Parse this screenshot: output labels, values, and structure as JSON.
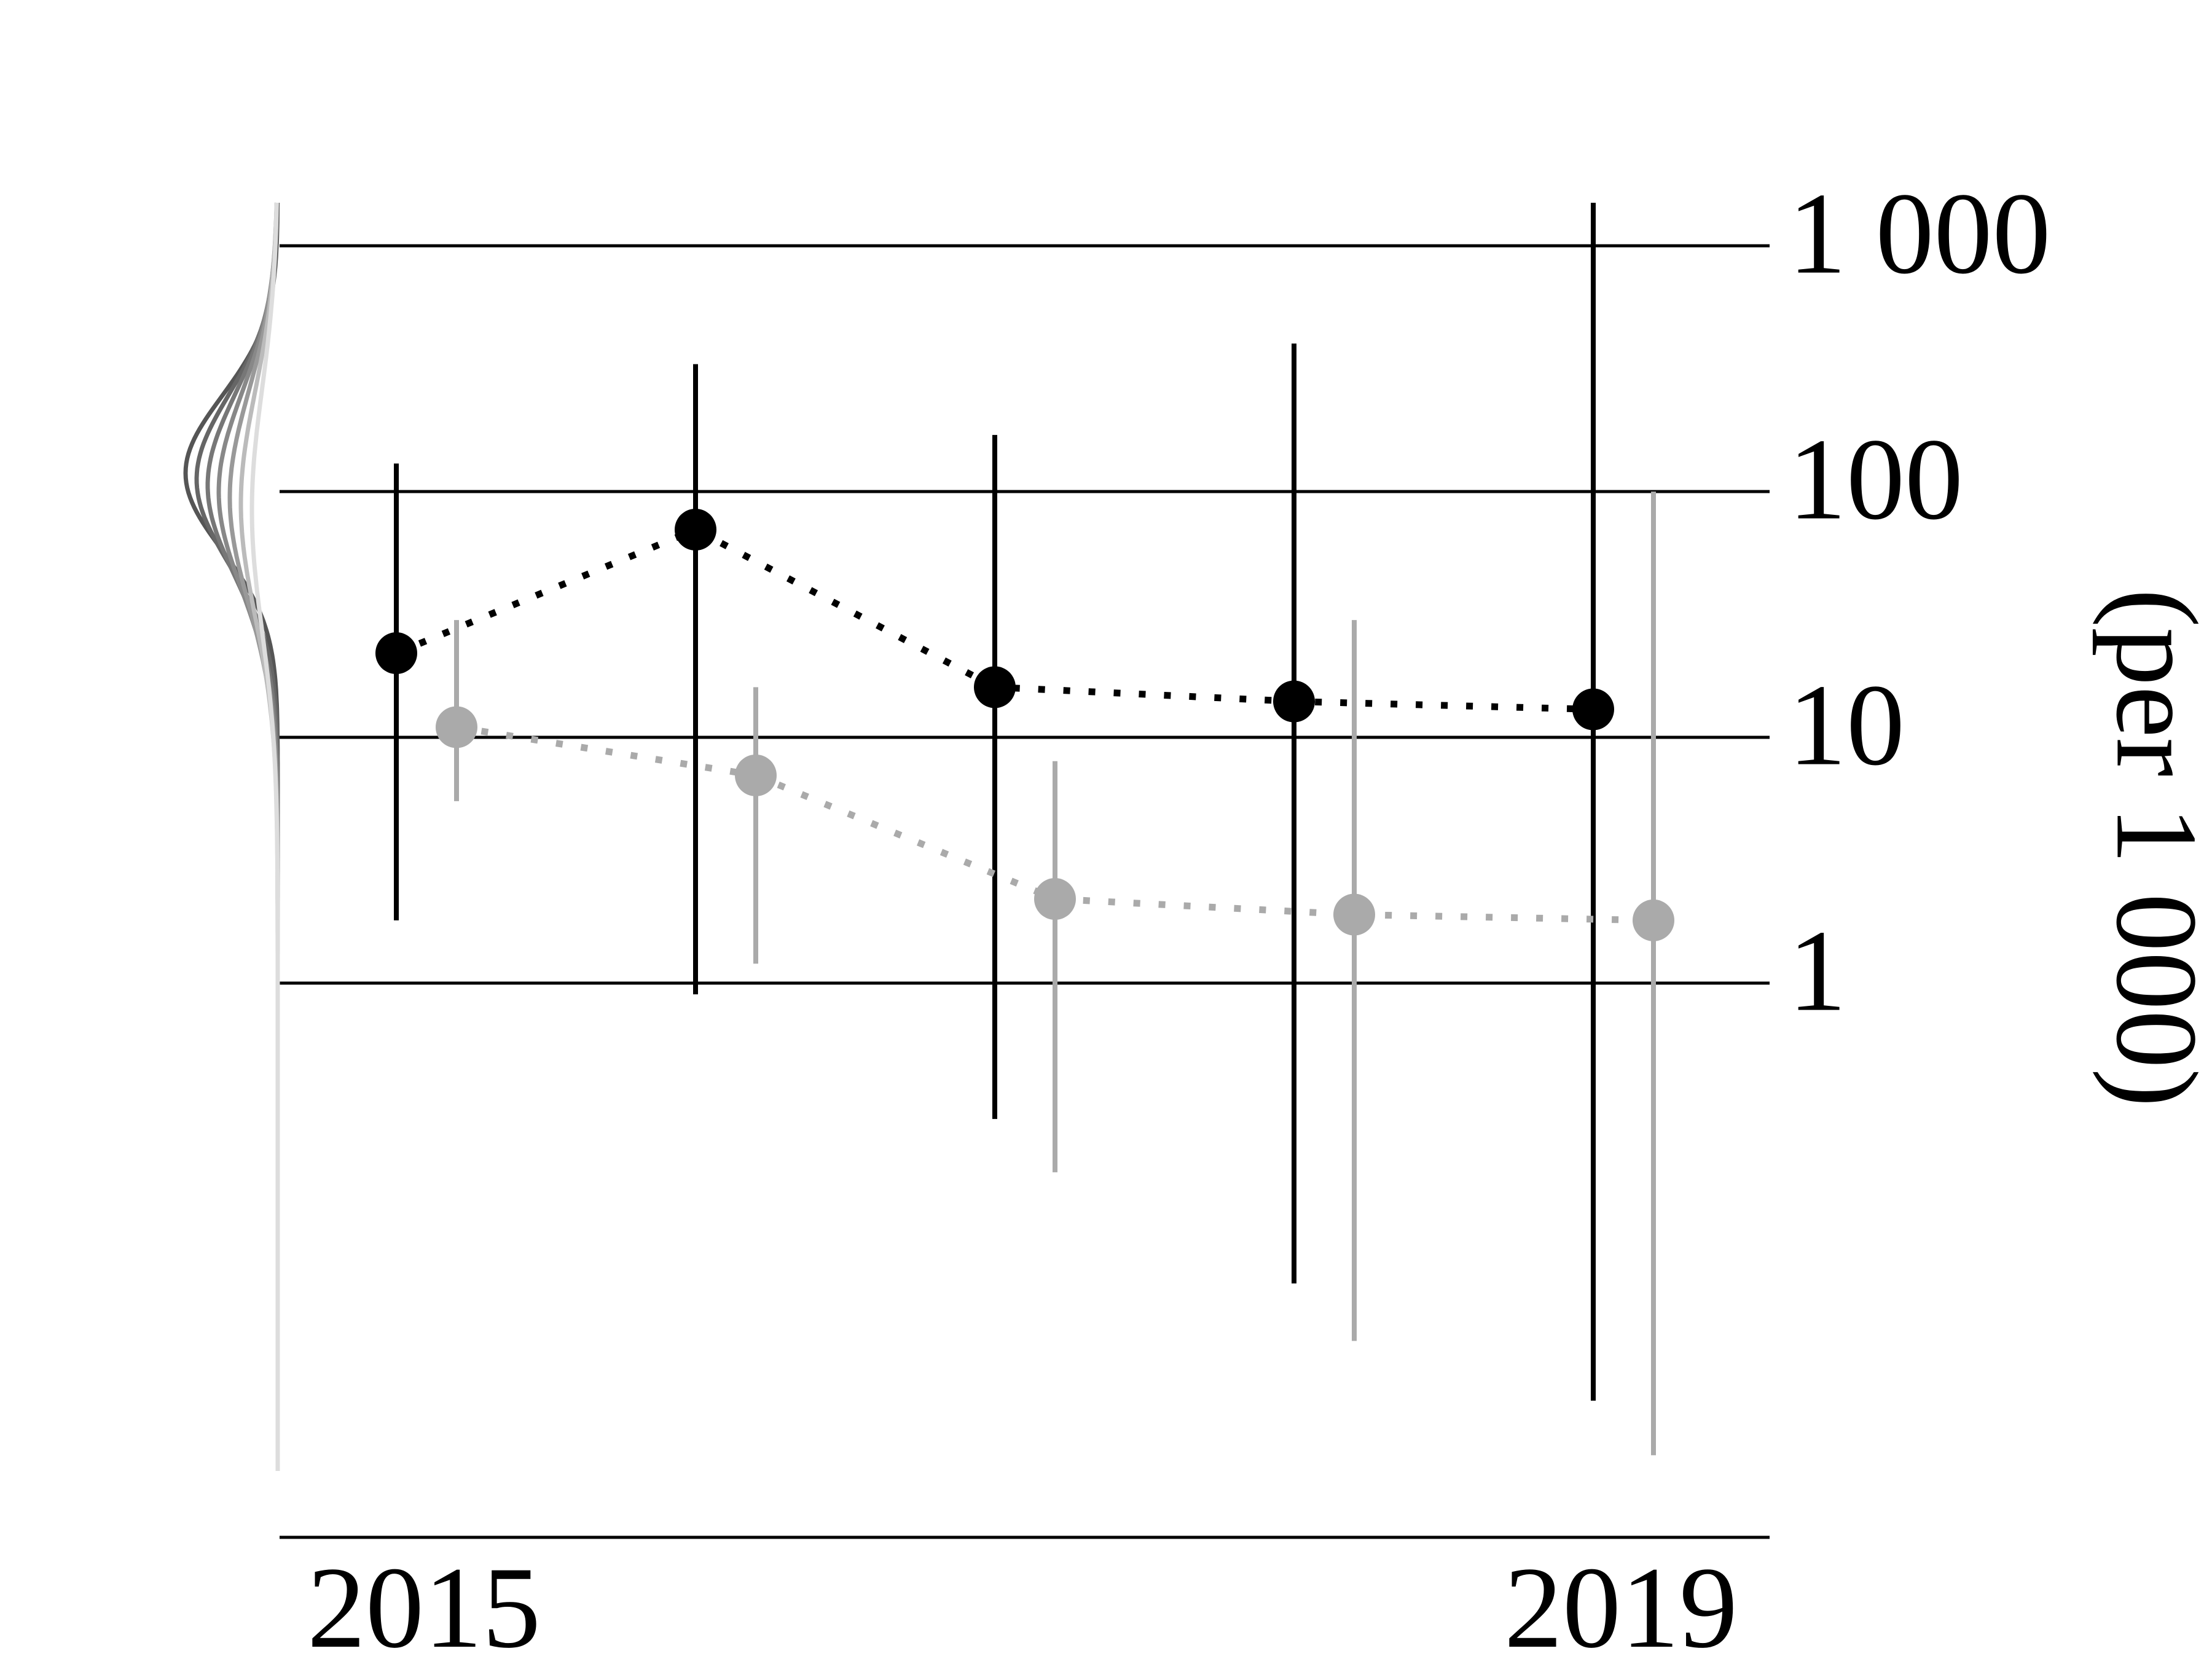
{
  "chart_data": {
    "type": "scatter",
    "title": "",
    "xlabel": "",
    "ylabel": "(per 1 000)",
    "y_scale": "log",
    "ylim": [
      0.02,
      2000
    ],
    "xlim": [
      2014.6,
      2019.6
    ],
    "x_ticks": [
      {
        "value": 2015,
        "label": "2015"
      },
      {
        "value": 2019,
        "label": "2019"
      }
    ],
    "y_ticks": [
      {
        "value": 1,
        "label": "1"
      },
      {
        "value": 10,
        "label": "10"
      },
      {
        "value": 100,
        "label": "100"
      },
      {
        "value": 1000,
        "label": "1 000"
      }
    ],
    "grid": "horizontal",
    "legend": "none",
    "series": [
      {
        "color": "#000000",
        "style": "dotted",
        "points": [
          {
            "x": 2015,
            "y": 22,
            "low": 1.8,
            "high": 130
          },
          {
            "x": 2016,
            "y": 70,
            "low": 0.9,
            "high": 330
          },
          {
            "x": 2017,
            "y": 16,
            "low": 0.28,
            "high": 170
          },
          {
            "x": 2018,
            "y": 14,
            "low": 0.06,
            "high": 400
          },
          {
            "x": 2019,
            "y": 13,
            "low": 0.02,
            "high": 1500
          }
        ]
      },
      {
        "color": "#aaaaaa",
        "style": "dotted",
        "points": [
          {
            "x": 2015,
            "y": 11,
            "low": 5.5,
            "high": 30
          },
          {
            "x": 2016,
            "y": 7,
            "low": 1.2,
            "high": 16
          },
          {
            "x": 2017,
            "y": 2.2,
            "low": 0.17,
            "high": 8
          },
          {
            "x": 2018,
            "y": 1.9,
            "low": 0.035,
            "high": 30
          },
          {
            "x": 2019,
            "y": 1.8,
            "low": 0.012,
            "high": 100
          }
        ]
      }
    ],
    "prior_density": {
      "mode": 100,
      "curve_colors": [
        "#555555",
        "#666666",
        "#777777",
        "#888888",
        "#999999",
        "#bbbbbb",
        "#dddddd"
      ]
    }
  }
}
